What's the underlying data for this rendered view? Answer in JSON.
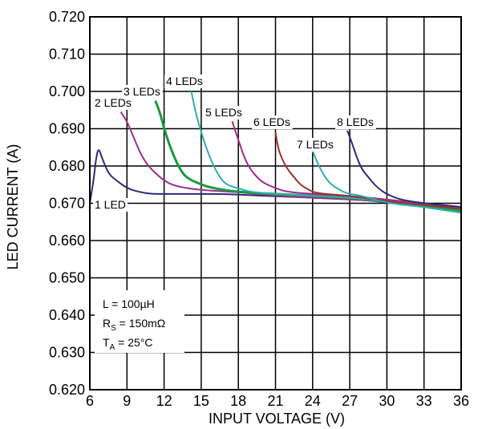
{
  "chart_data": {
    "type": "line",
    "title": "",
    "xlabel": "INPUT VOLTAGE (V)",
    "ylabel": "LED CURRENT (A)",
    "xlim": [
      6,
      36
    ],
    "ylim": [
      0.62,
      0.72
    ],
    "grid": true,
    "x_ticks": [
      "6",
      "9",
      "12",
      "15",
      "18",
      "21",
      "24",
      "27",
      "30",
      "33",
      "36"
    ],
    "y_ticks": [
      "0.620",
      "0.630",
      "0.640",
      "0.650",
      "0.660",
      "0.670",
      "0.680",
      "0.690",
      "0.700",
      "0.710",
      "0.720"
    ],
    "annotation": {
      "l": "L = 100µH",
      "rs_main": "R",
      "rs_sub": "S",
      "rs_rest": " = 150mΩ",
      "ta_main": "T",
      "ta_sub": "A",
      "ta_rest": " = 25°C"
    },
    "series": [
      {
        "name": "1 LED",
        "color": "#2e2a7a",
        "x": [
          6.0,
          6.3,
          6.5,
          6.7,
          7.0,
          7.5,
          8.0,
          9.0,
          10.0,
          11.0,
          12.0,
          14.0,
          17.0,
          20.0,
          24.0,
          28.0,
          32.0,
          36.0
        ],
        "y": [
          0.67,
          0.676,
          0.682,
          0.685,
          0.682,
          0.678,
          0.6765,
          0.674,
          0.673,
          0.6725,
          0.6725,
          0.6725,
          0.6725,
          0.672,
          0.6715,
          0.671,
          0.6695,
          0.6675
        ]
      },
      {
        "name": "2 LEDs",
        "color": "#a02c8a",
        "x": [
          8.5,
          9.0,
          9.5,
          10.0,
          10.5,
          11.0,
          12.0,
          13.0,
          15.0,
          18.0,
          21.0,
          24.0,
          27.0,
          30.0,
          33.0,
          36.0
        ],
        "y": [
          0.6945,
          0.692,
          0.688,
          0.684,
          0.681,
          0.679,
          0.676,
          0.6745,
          0.6735,
          0.673,
          0.672,
          0.6715,
          0.671,
          0.6705,
          0.6695,
          0.669
        ]
      },
      {
        "name": "3 LEDs",
        "color": "#1a9a3c",
        "x": [
          11.3,
          11.7,
          12.0,
          12.5,
          13.0,
          13.5,
          14.0,
          15.0,
          16.0,
          18.0,
          21.0,
          24.0,
          27.0,
          30.0,
          33.0,
          36.0
        ],
        "y": [
          0.6975,
          0.694,
          0.69,
          0.685,
          0.681,
          0.678,
          0.6765,
          0.675,
          0.674,
          0.673,
          0.6725,
          0.672,
          0.6715,
          0.6705,
          0.6695,
          0.668
        ]
      },
      {
        "name": "4 LEDs",
        "color": "#2ab0b0",
        "x": [
          14.2,
          14.5,
          15.0,
          15.5,
          16.0,
          16.5,
          17.0,
          18.0,
          19.0,
          21.0,
          24.0,
          27.0,
          30.0,
          33.0,
          36.0
        ],
        "y": [
          0.7,
          0.695,
          0.689,
          0.684,
          0.68,
          0.677,
          0.675,
          0.674,
          0.673,
          0.6725,
          0.672,
          0.6715,
          0.6705,
          0.6695,
          0.6685
        ]
      },
      {
        "name": "5 LEDs",
        "color": "#a02c8a",
        "x": [
          17.5,
          18.0,
          18.5,
          19.0,
          19.5,
          20.0,
          21.0,
          22.0,
          24.0,
          27.0,
          30.0,
          33.0,
          36.0
        ],
        "y": [
          0.692,
          0.687,
          0.682,
          0.679,
          0.677,
          0.6755,
          0.674,
          0.673,
          0.6725,
          0.672,
          0.671,
          0.67,
          0.669
        ]
      },
      {
        "name": "6 LEDs",
        "color": "#a0302a",
        "x": [
          21.0,
          21.2,
          21.5,
          22.0,
          22.5,
          23.0,
          23.5,
          24.0,
          25.0,
          27.0,
          30.0,
          33.0,
          36.0
        ],
        "y": [
          0.689,
          0.685,
          0.682,
          0.679,
          0.677,
          0.675,
          0.674,
          0.673,
          0.6725,
          0.672,
          0.6705,
          0.6695,
          0.6685
        ]
      },
      {
        "name": "7 LEDs",
        "color": "#2ab0b0",
        "x": [
          24.0,
          24.5,
          25.0,
          25.5,
          26.0,
          26.5,
          27.0,
          28.0,
          30.0,
          33.0,
          36.0
        ],
        "y": [
          0.684,
          0.68,
          0.677,
          0.675,
          0.674,
          0.673,
          0.6725,
          0.672,
          0.67,
          0.669,
          0.6675
        ]
      },
      {
        "name": "8 LEDs",
        "color": "#2e2a7a",
        "x": [
          26.8,
          27.2,
          27.6,
          28.0,
          28.5,
          29.0,
          29.5,
          30.0,
          31.0,
          33.0,
          36.0
        ],
        "y": [
          0.6895,
          0.686,
          0.682,
          0.679,
          0.677,
          0.675,
          0.6735,
          0.6725,
          0.671,
          0.67,
          0.669
        ]
      }
    ]
  }
}
